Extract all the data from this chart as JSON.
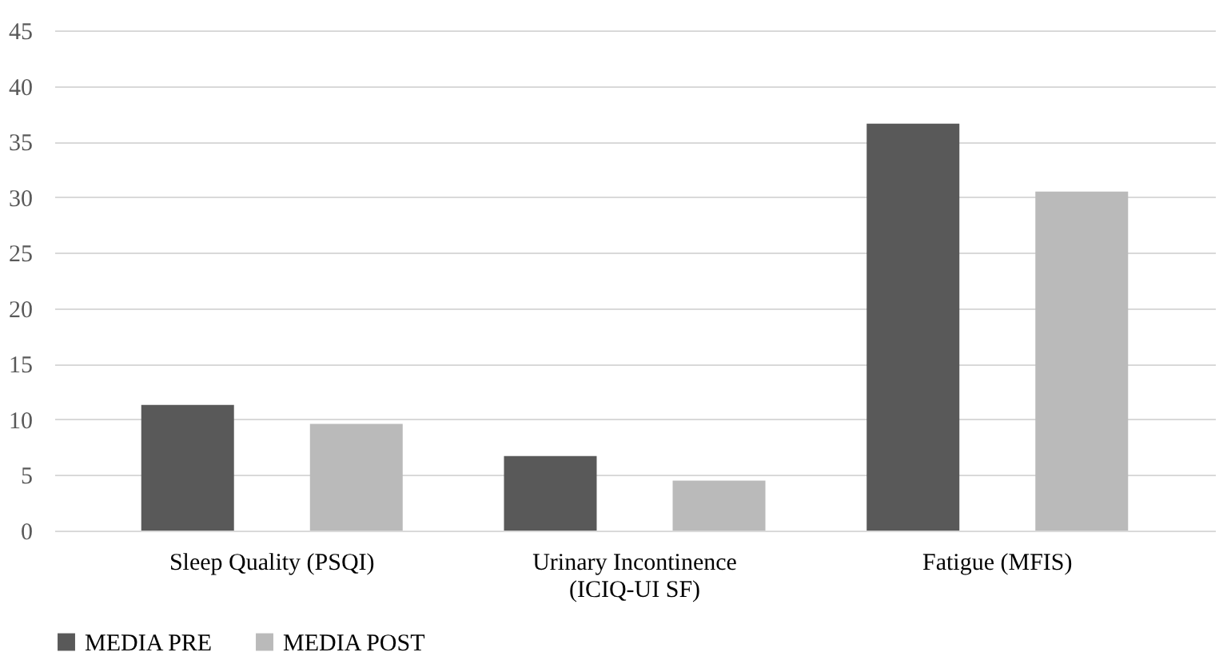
{
  "chart_data": {
    "type": "bar",
    "categories": [
      "Sleep Quality (PSQI)",
      "Urinary Incontinence\n(ICIQ-UI SF)",
      "Fatigue (MFIS)"
    ],
    "series": [
      {
        "name": "MEDIA  PRE",
        "color": "#595959",
        "values": [
          11.3,
          6.7,
          36.6
        ]
      },
      {
        "name": "MEDIA  POST",
        "color": "#bababa",
        "values": [
          9.6,
          4.5,
          30.5
        ]
      }
    ],
    "ylim": [
      0,
      45
    ],
    "yticks": [
      0,
      5,
      10,
      15,
      20,
      25,
      30,
      35,
      40,
      45
    ],
    "grid": "y",
    "legend": "bottom"
  }
}
